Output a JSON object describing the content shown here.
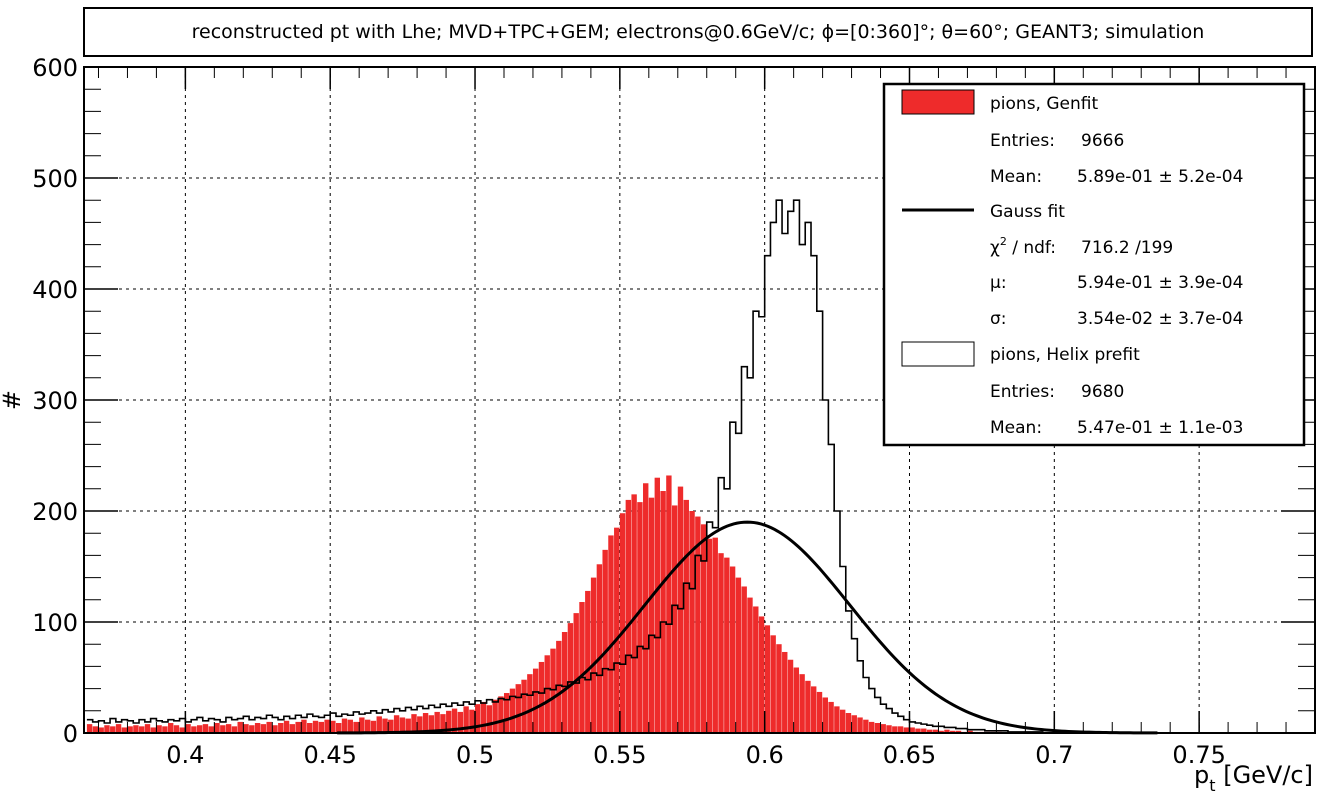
{
  "chart_data": {
    "type": "bar",
    "title": "reconstructed pt with Lhe; MVD+TPC+GEM; electrons@0.6GeV/c; ϕ=[0:360]°; θ=60°; GEANT3; simulation",
    "xlabel": "p",
    "xlabel_sub": "t",
    "xlabel_unit": "[GeV/c]",
    "ylabel": "#",
    "xlim": [
      0.365,
      0.79
    ],
    "ylim": [
      0,
      600
    ],
    "grid": true,
    "legend_position": "top-right",
    "x_ticks": [
      "0.4",
      "0.45",
      "0.5",
      "0.55",
      "0.6",
      "0.65",
      "0.7",
      "0.75"
    ],
    "y_ticks": [
      "0",
      "100",
      "200",
      "300",
      "400",
      "500",
      "600"
    ],
    "bin_width": 0.002,
    "series": [
      {
        "name": "pions, Genfit",
        "kind": "histogram-filled",
        "color": "#ee2b2b",
        "x_start": 0.366,
        "values": [
          8,
          6,
          5,
          7,
          6,
          8,
          5,
          6,
          7,
          6,
          8,
          5,
          7,
          6,
          9,
          7,
          5,
          8,
          6,
          7,
          8,
          6,
          9,
          7,
          8,
          6,
          10,
          8,
          7,
          9,
          8,
          10,
          7,
          9,
          11,
          8,
          10,
          12,
          9,
          11,
          10,
          12,
          11,
          9,
          13,
          12,
          10,
          14,
          12,
          11,
          15,
          13,
          12,
          16,
          14,
          13,
          17,
          15,
          18,
          16,
          19,
          17,
          20,
          22,
          19,
          24,
          21,
          26,
          28,
          25,
          30,
          33,
          36,
          40,
          44,
          48,
          53,
          58,
          64,
          70,
          76,
          83,
          91,
          99,
          108,
          118,
          128,
          140,
          152,
          165,
          178,
          185,
          198,
          210,
          215,
          208,
          225,
          212,
          230,
          218,
          232,
          205,
          222,
          210,
          200,
          195,
          188,
          175,
          176,
          162,
          158,
          150,
          140,
          132,
          122,
          114,
          105,
          97,
          88,
          80,
          73,
          66,
          59,
          53,
          47,
          42,
          37,
          32,
          28,
          24,
          21,
          18,
          16,
          14,
          12,
          10,
          9,
          8,
          7,
          6,
          6,
          5,
          5,
          4,
          4,
          3,
          3,
          2,
          3,
          2,
          2,
          1,
          2,
          1,
          1,
          1,
          1,
          1,
          0,
          1,
          0,
          0,
          0,
          0,
          0,
          0,
          0,
          0,
          0,
          0,
          0,
          0,
          0,
          0,
          0,
          0,
          0,
          0,
          0,
          0,
          0,
          0,
          0,
          0,
          0,
          0,
          0,
          0,
          0,
          0,
          0,
          0,
          0,
          0,
          0,
          0,
          0,
          0,
          0,
          0,
          0,
          0,
          0,
          0,
          0,
          0,
          0,
          0,
          0,
          0
        ],
        "legend_entries": [
          {
            "label": "Entries:",
            "value": "9666"
          },
          {
            "label": "Mean:",
            "value": "5.89e-01 ± 5.2e-04"
          }
        ]
      },
      {
        "name": "pions, Helix prefit",
        "kind": "histogram-outline",
        "color": "#000000",
        "x_start": 0.366,
        "values": [
          12,
          10,
          11,
          9,
          13,
          10,
          12,
          11,
          9,
          12,
          10,
          13,
          11,
          10,
          12,
          11,
          13,
          10,
          12,
          14,
          11,
          13,
          12,
          10,
          14,
          12,
          13,
          15,
          12,
          14,
          13,
          16,
          14,
          12,
          15,
          13,
          16,
          14,
          17,
          15,
          14,
          16,
          18,
          15,
          17,
          16,
          19,
          17,
          18,
          20,
          18,
          21,
          19,
          22,
          20,
          23,
          21,
          24,
          22,
          25,
          23,
          26,
          24,
          27,
          25,
          28,
          26,
          29,
          27,
          30,
          28,
          31,
          30,
          33,
          32,
          35,
          34,
          37,
          36,
          40,
          39,
          43,
          42,
          46,
          45,
          50,
          48,
          54,
          52,
          58,
          57,
          63,
          62,
          70,
          68,
          78,
          76,
          88,
          86,
          100,
          98,
          115,
          112,
          135,
          130,
          160,
          155,
          190,
          185,
          230,
          220,
          280,
          270,
          330,
          320,
          380,
          375,
          430,
          460,
          480,
          450,
          470,
          480,
          440,
          460,
          430,
          380,
          300,
          260,
          200,
          150,
          110,
          85,
          65,
          50,
          40,
          32,
          26,
          22,
          18,
          15,
          12,
          10,
          9,
          8,
          7,
          6,
          6,
          5,
          5,
          4,
          4,
          3,
          3,
          3,
          2,
          2,
          2,
          2,
          1,
          1,
          1,
          1,
          1,
          1,
          0,
          0,
          0,
          0,
          0,
          0,
          0,
          0,
          0,
          0,
          0,
          0,
          0,
          0,
          0,
          0,
          0,
          0,
          0,
          0,
          0,
          0,
          0,
          0,
          0,
          0,
          0,
          0,
          0,
          0,
          0,
          0,
          0,
          0,
          0,
          0,
          0,
          0,
          0,
          0,
          0,
          0,
          0,
          0,
          0,
          0,
          0
        ],
        "legend_entries": [
          {
            "label": "Entries:",
            "value": "9680"
          },
          {
            "label": "Mean:",
            "value": "5.47e-01 ± 1.1e-03"
          }
        ]
      },
      {
        "name": "Gauss fit",
        "kind": "curve",
        "color": "#000000",
        "amplitude": 190,
        "mu": 0.594,
        "sigma": 0.0354,
        "legend_entries": [
          {
            "label_prefix": "χ",
            "label_sup": "2",
            "label_suffix": " / ndf:",
            "value": "716.2 /199"
          },
          {
            "label": "μ:",
            "value": "5.94e-01 ± 3.9e-04"
          },
          {
            "label": "σ:",
            "value": "3.54e-02 ± 3.7e-04"
          }
        ]
      }
    ]
  }
}
